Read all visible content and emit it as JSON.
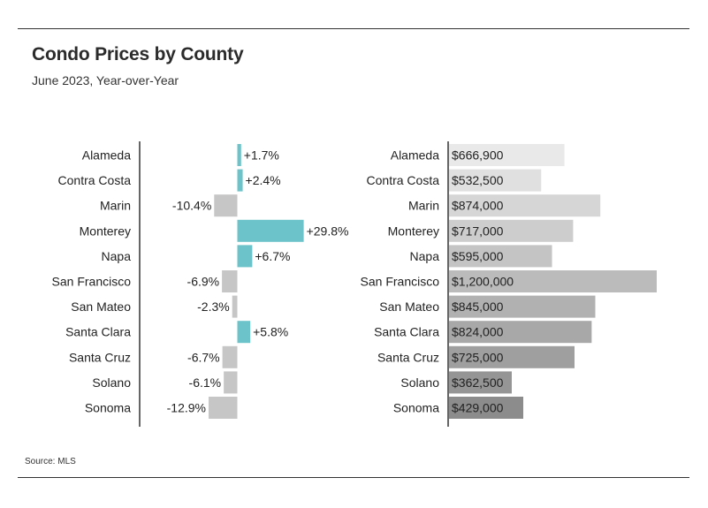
{
  "header": {
    "title": "Condo Prices by County",
    "subtitle": "June 2023, Year-over-Year"
  },
  "footer": {
    "source": "Source: MLS"
  },
  "colors": {
    "positive": "#6cc3c9",
    "negative": "#c6c6c6",
    "axis": "#333333",
    "price_gradient": [
      "#e9e9e9",
      "#8c8c8c"
    ]
  },
  "chart_data": [
    {
      "type": "bar",
      "orientation": "horizontal",
      "categories": [
        "Alameda",
        "Contra Costa",
        "Marin",
        "Monterey",
        "Napa",
        "San Francisco",
        "San Mateo",
        "Santa Clara",
        "Santa Cruz",
        "Solano",
        "Sonoma"
      ],
      "values": [
        1.7,
        2.4,
        -10.4,
        29.8,
        6.7,
        -6.9,
        -2.3,
        5.8,
        -6.7,
        -6.1,
        -12.9
      ],
      "labels": [
        "+1.7%",
        "+2.4%",
        "-10.4%",
        "+29.8%",
        "+6.7%",
        "-6.9%",
        "-2.3%",
        "+5.8%",
        "-6.7%",
        "-6.1%",
        "-12.9%"
      ],
      "unit": "%",
      "xlim": [
        -20,
        30
      ]
    },
    {
      "type": "bar",
      "orientation": "horizontal",
      "categories": [
        "Alameda",
        "Contra Costa",
        "Marin",
        "Monterey",
        "Napa",
        "San Francisco",
        "San Mateo",
        "Santa Clara",
        "Santa Cruz",
        "Solano",
        "Sonoma"
      ],
      "values": [
        666900,
        532500,
        874000,
        717000,
        595000,
        1200000,
        845000,
        824000,
        725000,
        362500,
        429000
      ],
      "labels": [
        "$666,900",
        "$532,500",
        "$874,000",
        "$717,000",
        "$595,000",
        "$1,200,000",
        "$845,000",
        "$824,000",
        "$725,000",
        "$362,500",
        "$429,000"
      ],
      "unit": "$",
      "xlim": [
        0,
        1200000
      ]
    }
  ]
}
